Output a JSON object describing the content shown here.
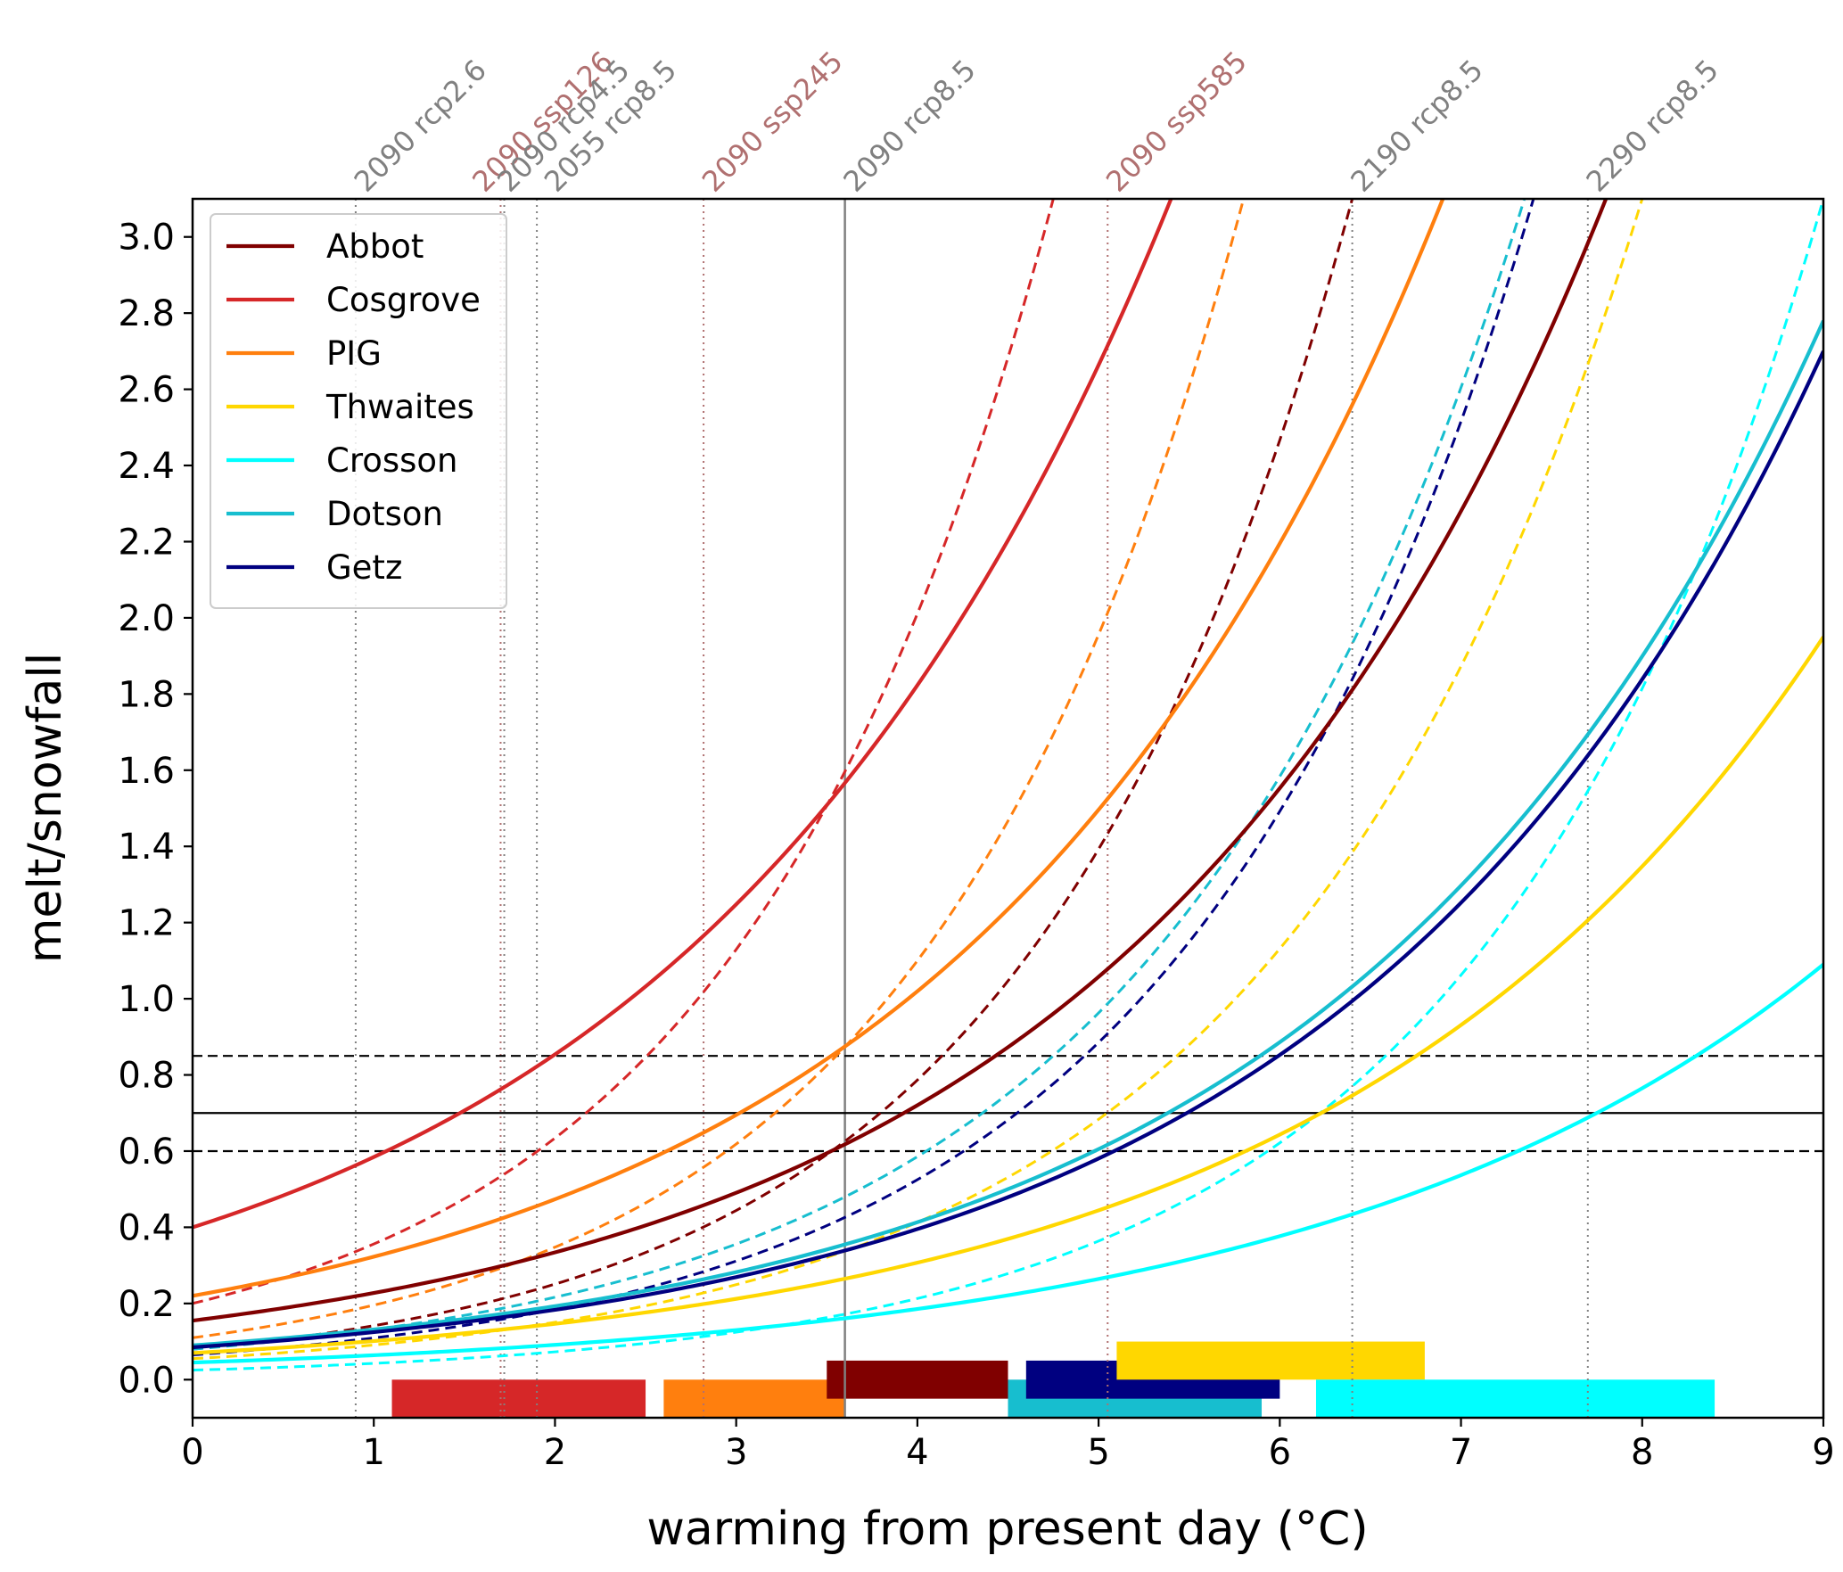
{
  "chart_data": {
    "type": "line",
    "xlabel": "warming from present day (°C)",
    "ylabel": "melt/snowfall",
    "xlim": [
      0,
      9
    ],
    "ylim": [
      -0.1,
      3.1
    ],
    "xticks": [
      "0",
      "1",
      "2",
      "3",
      "4",
      "5",
      "6",
      "7",
      "8",
      "9"
    ],
    "yticks": [
      "0.0",
      "0.2",
      "0.4",
      "0.6",
      "0.8",
      "1.0",
      "1.2",
      "1.4",
      "1.6",
      "1.8",
      "2.0",
      "2.2",
      "2.4",
      "2.6",
      "2.8",
      "3.0"
    ],
    "legend_position": "upper-left",
    "series": [
      {
        "name": "Abbot",
        "color": "#800000",
        "solid": {
          "y0": 0.155,
          "x_ref": 7.8,
          "y_ref": 3.1
        },
        "dashed": {
          "y0": 0.08,
          "x_ref": 6.4,
          "y_ref": 3.1
        }
      },
      {
        "name": "Cosgrove",
        "color": "#d62728",
        "solid": {
          "y0": 0.4,
          "x_ref": 5.4,
          "y_ref": 3.1
        },
        "dashed": {
          "y0": 0.2,
          "x_ref": 4.75,
          "y_ref": 3.1
        }
      },
      {
        "name": "PIG",
        "color": "#ff7f0e",
        "solid": {
          "y0": 0.22,
          "x_ref": 6.9,
          "y_ref": 3.1
        },
        "dashed": {
          "y0": 0.11,
          "x_ref": 5.8,
          "y_ref": 3.1
        }
      },
      {
        "name": "Thwaites",
        "color": "#ffd700",
        "solid": {
          "y0": 0.07,
          "x_ref": 9.0,
          "y_ref": 1.95
        },
        "dashed": {
          "y0": 0.055,
          "x_ref": 8.0,
          "y_ref": 3.1
        }
      },
      {
        "name": "Crosson",
        "color": "#00ffff",
        "solid": {
          "y0": 0.045,
          "x_ref": 9.0,
          "y_ref": 1.09
        },
        "dashed": {
          "y0": 0.025,
          "x_ref": 9.0,
          "y_ref": 3.1
        }
      },
      {
        "name": "Dotson",
        "color": "#17becf",
        "solid": {
          "y0": 0.09,
          "x_ref": 9.0,
          "y_ref": 2.78
        },
        "dashed": {
          "y0": 0.08,
          "x_ref": 7.35,
          "y_ref": 3.1
        }
      },
      {
        "name": "Getz",
        "color": "#000080",
        "solid": {
          "y0": 0.085,
          "x_ref": 9.0,
          "y_ref": 2.7
        },
        "dashed": {
          "y0": 0.065,
          "x_ref": 7.4,
          "y_ref": 3.1
        }
      }
    ],
    "horizontal_lines": [
      {
        "y": 0.85,
        "style": "dashed"
      },
      {
        "y": 0.7,
        "style": "solid"
      },
      {
        "y": 0.6,
        "style": "dashed"
      }
    ],
    "vertical_lines": [
      {
        "x": 0.9,
        "label": "2090 rcp2.6",
        "color": "#808080",
        "style": "dotted"
      },
      {
        "x": 1.7,
        "label": "2090 ssp126",
        "color": "#b07070",
        "style": "dotted"
      },
      {
        "x": 1.72,
        "label": "2090 rcp4.5",
        "color": "#808080",
        "style": "dotted"
      },
      {
        "x": 1.9,
        "label": "2055 rcp8.5",
        "color": "#808080",
        "style": "dotted"
      },
      {
        "x": 2.82,
        "label": "2090 ssp245",
        "color": "#b07070",
        "style": "dotted"
      },
      {
        "x": 3.6,
        "label": "2090 rcp8.5",
        "color": "#808080",
        "style": "solid"
      },
      {
        "x": 5.05,
        "label": "2090 ssp585",
        "color": "#b07070",
        "style": "dotted"
      },
      {
        "x": 6.4,
        "label": "2190 rcp8.5",
        "color": "#808080",
        "style": "dotted"
      },
      {
        "x": 7.7,
        "label": "2290 rcp8.5",
        "color": "#808080",
        "style": "dotted"
      }
    ],
    "bars": [
      {
        "name": "Cosgrove",
        "x0": 1.1,
        "x1": 2.5,
        "y0": -0.1,
        "y1": 0.0,
        "color": "#d62728"
      },
      {
        "name": "PIG",
        "x0": 2.6,
        "x1": 3.6,
        "y0": -0.1,
        "y1": 0.0,
        "color": "#ff7f0e"
      },
      {
        "name": "Abbot",
        "x0": 3.5,
        "x1": 4.5,
        "y0": -0.05,
        "y1": 0.05,
        "color": "#800000"
      },
      {
        "name": "Dotson",
        "x0": 4.5,
        "x1": 5.9,
        "y0": -0.1,
        "y1": 0.0,
        "color": "#17becf"
      },
      {
        "name": "Getz",
        "x0": 4.6,
        "x1": 6.0,
        "y0": -0.05,
        "y1": 0.05,
        "color": "#000080"
      },
      {
        "name": "Thwaites",
        "x0": 5.1,
        "x1": 6.8,
        "y0": 0.0,
        "y1": 0.1,
        "color": "#ffd700"
      },
      {
        "name": "Crosson",
        "x0": 6.2,
        "x1": 8.4,
        "y0": -0.1,
        "y1": 0.0,
        "color": "#00ffff"
      }
    ]
  }
}
